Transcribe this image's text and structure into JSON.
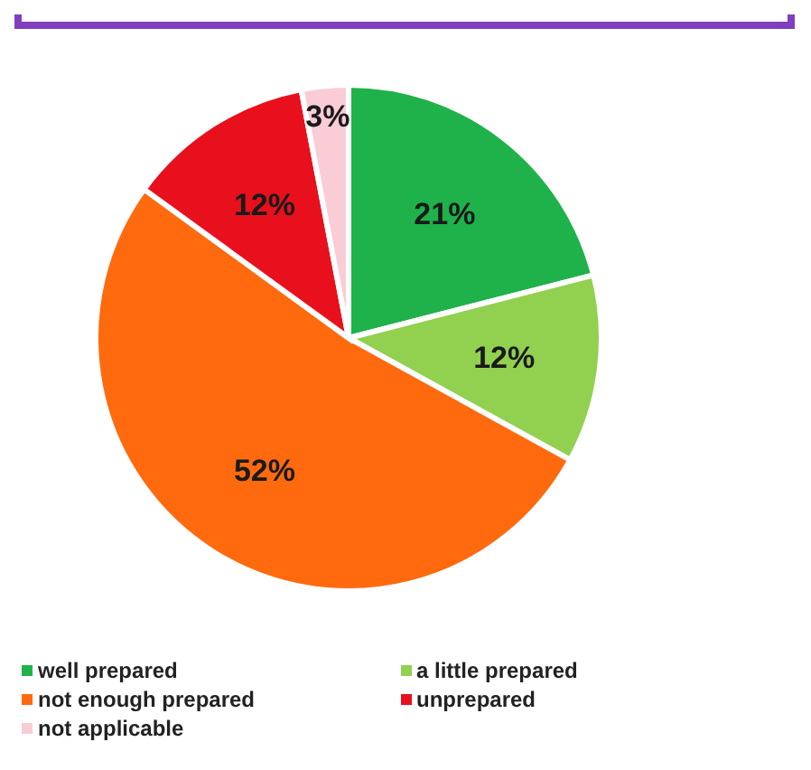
{
  "chart_data": {
    "type": "pie",
    "categories": [
      "well prepared",
      "a little prepared",
      "not enough prepared",
      "unprepared",
      "not applicable"
    ],
    "values": [
      21,
      12,
      52,
      12,
      3
    ],
    "colors": [
      "#1fb24a",
      "#92d050",
      "#ff6a0e",
      "#e8101c",
      "#f9ccd6"
    ],
    "value_labels": [
      "21%",
      "12%",
      "52%",
      "12%",
      "3%"
    ],
    "legend": "bottom"
  }
}
